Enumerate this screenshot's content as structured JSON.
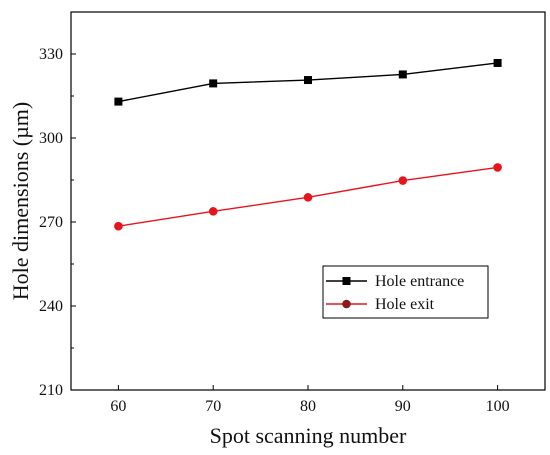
{
  "chart_data": {
    "type": "line",
    "xlabel": "Spot scanning number",
    "ylabel": "Hole dimensions (µm)",
    "x": [
      60,
      70,
      80,
      90,
      100
    ],
    "xlim": [
      55,
      105
    ],
    "ylim": [
      210,
      345
    ],
    "xticks": [
      60,
      70,
      80,
      90,
      100
    ],
    "yticks": [
      210,
      240,
      270,
      300,
      330
    ],
    "grid": false,
    "legend_position": "bottom-right",
    "series": [
      {
        "name": "Hole entrance",
        "values": [
          313,
          319.5,
          320.7,
          322.7,
          326.8
        ],
        "color": "#000000",
        "marker": "square"
      },
      {
        "name": "Hole exit",
        "values": [
          268.5,
          273.8,
          278.8,
          284.8,
          289.5
        ],
        "color": "#e8141c",
        "marker": "circle",
        "marker_color": "#e8141c",
        "legend_marker_color": "#8b1a1a"
      }
    ]
  }
}
